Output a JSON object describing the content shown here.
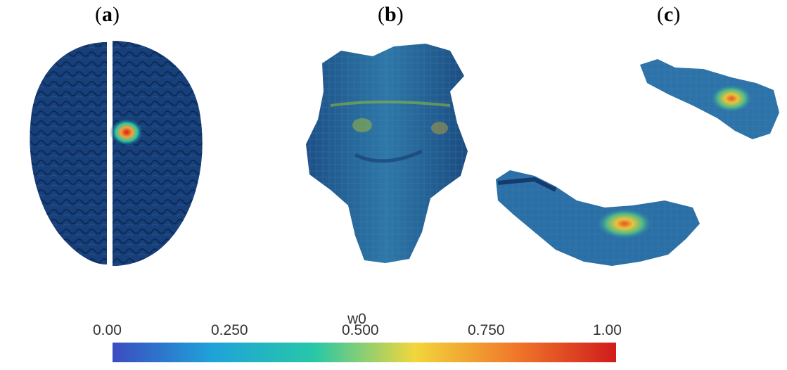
{
  "panels": [
    {
      "id": "a",
      "letter": "a"
    },
    {
      "id": "b",
      "letter": "b"
    },
    {
      "id": "c",
      "letter": "c"
    }
  ],
  "colorbar": {
    "title": "w0",
    "ticks": [
      "0.00",
      "0.250",
      "0.500",
      "0.750",
      "1.00"
    ],
    "stops": [
      "#3b4cc0",
      "#1fa3d9",
      "#27c7a8",
      "#f2d63c",
      "#f0782a",
      "#d01c1c"
    ]
  },
  "colors": {
    "background_tissue": "#173f7a",
    "dark_tissue": "#0f2d5e",
    "mid_tissue": "#2a6b9c",
    "hot": "#e03a1a",
    "warm": "#f2d63c",
    "cool": "#33b5a0"
  }
}
